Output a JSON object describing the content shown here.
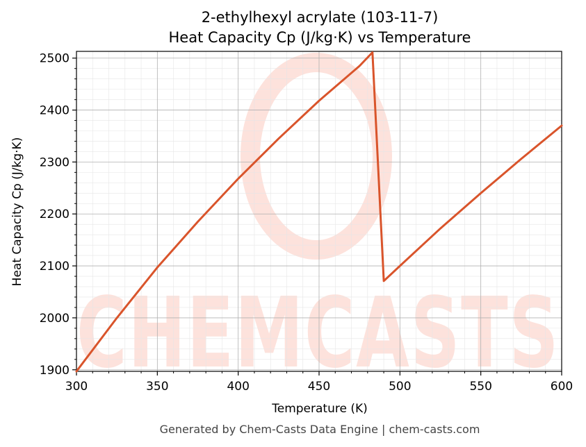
{
  "chart_data": {
    "type": "line",
    "title": "2-ethylhexyl acrylate (103-11-7)",
    "subtitle": "Heat Capacity Cp (J/kg·K) vs Temperature",
    "xlabel": "Temperature (K)",
    "ylabel": "Heat Capacity Cp (J/kg·K)",
    "xlim": [
      300,
      600
    ],
    "ylim": [
      1897,
      2513
    ],
    "x_ticks": [
      300,
      350,
      400,
      450,
      500,
      550,
      600
    ],
    "y_ticks": [
      1900,
      2000,
      2100,
      2200,
      2300,
      2400,
      2500
    ],
    "grid": true,
    "series": [
      {
        "color": "#d9542b",
        "x": [
          300,
          325,
          350,
          375,
          400,
          425,
          450,
          475,
          483,
          490,
          500,
          525,
          550,
          575,
          600
        ],
        "y": [
          1897,
          2000,
          2097,
          2185,
          2268,
          2345,
          2418,
          2485,
          2511,
          2071,
          2100,
          2172,
          2240,
          2306,
          2370
        ]
      }
    ],
    "watermark": "CHEMCASTS",
    "footer": "Generated by Chem-Casts Data Engine | chem-casts.com"
  }
}
